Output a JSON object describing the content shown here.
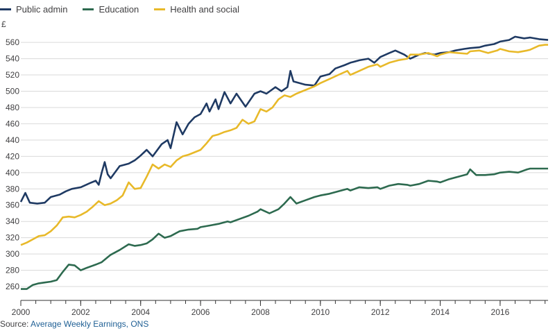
{
  "chart_data": {
    "type": "line",
    "ylabel": "£",
    "ylim": [
      243,
      578
    ],
    "xlim": [
      2000,
      2017.6
    ],
    "yticks": [
      260,
      280,
      300,
      320,
      340,
      360,
      380,
      400,
      420,
      440,
      460,
      480,
      500,
      520,
      540,
      560
    ],
    "xticks": [
      2000,
      2002,
      2004,
      2006,
      2008,
      2010,
      2012,
      2014,
      2016
    ],
    "grid": true,
    "legend_position": "top-left",
    "series": [
      {
        "name": "Public admin",
        "color": "#1f3a63",
        "points": [
          [
            2000.0,
            364
          ],
          [
            2000.15,
            375
          ],
          [
            2000.3,
            363
          ],
          [
            2000.55,
            362
          ],
          [
            2000.8,
            363
          ],
          [
            2001.0,
            370
          ],
          [
            2001.3,
            373
          ],
          [
            2001.5,
            377
          ],
          [
            2001.7,
            380
          ],
          [
            2002.0,
            382
          ],
          [
            2002.3,
            387
          ],
          [
            2002.5,
            390
          ],
          [
            2002.6,
            385
          ],
          [
            2002.7,
            400
          ],
          [
            2002.8,
            413
          ],
          [
            2002.9,
            398
          ],
          [
            2003.0,
            393
          ],
          [
            2003.3,
            408
          ],
          [
            2003.6,
            411
          ],
          [
            2003.8,
            415
          ],
          [
            2004.0,
            421
          ],
          [
            2004.2,
            428
          ],
          [
            2004.4,
            420
          ],
          [
            2004.7,
            435
          ],
          [
            2004.9,
            440
          ],
          [
            2005.0,
            430
          ],
          [
            2005.2,
            462
          ],
          [
            2005.4,
            447
          ],
          [
            2005.6,
            460
          ],
          [
            2005.8,
            468
          ],
          [
            2006.0,
            472
          ],
          [
            2006.2,
            485
          ],
          [
            2006.3,
            475
          ],
          [
            2006.5,
            490
          ],
          [
            2006.6,
            478
          ],
          [
            2006.8,
            499
          ],
          [
            2007.0,
            485
          ],
          [
            2007.2,
            497
          ],
          [
            2007.5,
            481
          ],
          [
            2007.8,
            497
          ],
          [
            2008.0,
            500
          ],
          [
            2008.2,
            497
          ],
          [
            2008.5,
            505
          ],
          [
            2008.7,
            500
          ],
          [
            2008.9,
            505
          ],
          [
            2009.0,
            525
          ],
          [
            2009.1,
            512
          ],
          [
            2009.3,
            510
          ],
          [
            2009.5,
            508
          ],
          [
            2009.8,
            507
          ],
          [
            2010.0,
            518
          ],
          [
            2010.3,
            521
          ],
          [
            2010.5,
            528
          ],
          [
            2010.8,
            532
          ],
          [
            2011.0,
            535
          ],
          [
            2011.3,
            538
          ],
          [
            2011.6,
            540
          ],
          [
            2011.8,
            535
          ],
          [
            2012.0,
            542
          ],
          [
            2012.3,
            547
          ],
          [
            2012.5,
            550
          ],
          [
            2012.8,
            545
          ],
          [
            2013.0,
            540
          ],
          [
            2013.3,
            545
          ],
          [
            2013.5,
            547
          ],
          [
            2013.8,
            545
          ],
          [
            2014.0,
            547
          ],
          [
            2014.3,
            548
          ],
          [
            2014.5,
            550
          ],
          [
            2014.8,
            552
          ],
          [
            2015.0,
            553
          ],
          [
            2015.3,
            554
          ],
          [
            2015.5,
            556
          ],
          [
            2015.8,
            558
          ],
          [
            2016.0,
            561
          ],
          [
            2016.3,
            563
          ],
          [
            2016.5,
            567
          ],
          [
            2016.8,
            565
          ],
          [
            2017.0,
            566
          ],
          [
            2017.3,
            564
          ],
          [
            2017.6,
            563
          ]
        ]
      },
      {
        "name": "Education",
        "color": "#2d6a4f",
        "points": [
          [
            2000.0,
            257
          ],
          [
            2000.2,
            257
          ],
          [
            2000.4,
            262
          ],
          [
            2000.6,
            264
          ],
          [
            2000.8,
            265
          ],
          [
            2001.0,
            266
          ],
          [
            2001.2,
            268
          ],
          [
            2001.4,
            278
          ],
          [
            2001.6,
            287
          ],
          [
            2001.8,
            286
          ],
          [
            2002.0,
            280
          ],
          [
            2002.2,
            283
          ],
          [
            2002.5,
            287
          ],
          [
            2002.7,
            290
          ],
          [
            2002.9,
            296
          ],
          [
            2003.0,
            299
          ],
          [
            2003.3,
            305
          ],
          [
            2003.6,
            312
          ],
          [
            2003.8,
            310
          ],
          [
            2004.0,
            311
          ],
          [
            2004.2,
            313
          ],
          [
            2004.4,
            318
          ],
          [
            2004.6,
            325
          ],
          [
            2004.8,
            320
          ],
          [
            2005.0,
            322
          ],
          [
            2005.3,
            328
          ],
          [
            2005.6,
            330
          ],
          [
            2005.9,
            331
          ],
          [
            2006.0,
            333
          ],
          [
            2006.3,
            335
          ],
          [
            2006.6,
            337
          ],
          [
            2006.9,
            340
          ],
          [
            2007.0,
            339
          ],
          [
            2007.3,
            343
          ],
          [
            2007.6,
            347
          ],
          [
            2007.9,
            352
          ],
          [
            2008.0,
            355
          ],
          [
            2008.3,
            350
          ],
          [
            2008.6,
            355
          ],
          [
            2008.8,
            362
          ],
          [
            2009.0,
            370
          ],
          [
            2009.2,
            362
          ],
          [
            2009.5,
            366
          ],
          [
            2009.8,
            370
          ],
          [
            2010.0,
            372
          ],
          [
            2010.3,
            374
          ],
          [
            2010.6,
            377
          ],
          [
            2010.9,
            380
          ],
          [
            2011.0,
            378
          ],
          [
            2011.3,
            382
          ],
          [
            2011.6,
            381
          ],
          [
            2011.9,
            382
          ],
          [
            2012.0,
            380
          ],
          [
            2012.3,
            384
          ],
          [
            2012.6,
            386
          ],
          [
            2012.9,
            385
          ],
          [
            2013.0,
            384
          ],
          [
            2013.3,
            386
          ],
          [
            2013.6,
            390
          ],
          [
            2013.9,
            389
          ],
          [
            2014.0,
            388
          ],
          [
            2014.3,
            392
          ],
          [
            2014.6,
            395
          ],
          [
            2014.9,
            398
          ],
          [
            2015.0,
            404
          ],
          [
            2015.2,
            397
          ],
          [
            2015.5,
            397
          ],
          [
            2015.8,
            398
          ],
          [
            2016.0,
            400
          ],
          [
            2016.3,
            401
          ],
          [
            2016.6,
            400
          ],
          [
            2016.9,
            404
          ],
          [
            2017.0,
            405
          ],
          [
            2017.3,
            405
          ],
          [
            2017.6,
            405
          ]
        ]
      },
      {
        "name": "Health and social",
        "color": "#e8b929",
        "points": [
          [
            2000.0,
            311
          ],
          [
            2000.2,
            314
          ],
          [
            2000.4,
            318
          ],
          [
            2000.6,
            322
          ],
          [
            2000.8,
            323
          ],
          [
            2001.0,
            328
          ],
          [
            2001.2,
            335
          ],
          [
            2001.4,
            345
          ],
          [
            2001.6,
            346
          ],
          [
            2001.8,
            345
          ],
          [
            2002.0,
            348
          ],
          [
            2002.2,
            352
          ],
          [
            2002.4,
            358
          ],
          [
            2002.6,
            365
          ],
          [
            2002.8,
            360
          ],
          [
            2003.0,
            362
          ],
          [
            2003.2,
            366
          ],
          [
            2003.4,
            372
          ],
          [
            2003.6,
            388
          ],
          [
            2003.8,
            380
          ],
          [
            2004.0,
            381
          ],
          [
            2004.2,
            395
          ],
          [
            2004.4,
            410
          ],
          [
            2004.6,
            405
          ],
          [
            2004.8,
            410
          ],
          [
            2005.0,
            407
          ],
          [
            2005.2,
            415
          ],
          [
            2005.4,
            420
          ],
          [
            2005.6,
            422
          ],
          [
            2005.8,
            425
          ],
          [
            2006.0,
            428
          ],
          [
            2006.2,
            436
          ],
          [
            2006.4,
            445
          ],
          [
            2006.6,
            447
          ],
          [
            2006.8,
            450
          ],
          [
            2007.0,
            452
          ],
          [
            2007.2,
            455
          ],
          [
            2007.4,
            465
          ],
          [
            2007.6,
            460
          ],
          [
            2007.8,
            463
          ],
          [
            2008.0,
            478
          ],
          [
            2008.2,
            475
          ],
          [
            2008.4,
            480
          ],
          [
            2008.6,
            490
          ],
          [
            2008.8,
            495
          ],
          [
            2009.0,
            493
          ],
          [
            2009.2,
            497
          ],
          [
            2009.4,
            500
          ],
          [
            2009.6,
            503
          ],
          [
            2009.8,
            506
          ],
          [
            2010.0,
            510
          ],
          [
            2010.3,
            515
          ],
          [
            2010.6,
            520
          ],
          [
            2010.9,
            525
          ],
          [
            2011.0,
            520
          ],
          [
            2011.3,
            525
          ],
          [
            2011.6,
            530
          ],
          [
            2011.9,
            533
          ],
          [
            2012.0,
            530
          ],
          [
            2012.3,
            535
          ],
          [
            2012.6,
            538
          ],
          [
            2012.9,
            540
          ],
          [
            2013.0,
            545
          ],
          [
            2013.3,
            545
          ],
          [
            2013.6,
            547
          ],
          [
            2013.9,
            543
          ],
          [
            2014.0,
            545
          ],
          [
            2014.3,
            548
          ],
          [
            2014.6,
            547
          ],
          [
            2014.9,
            546
          ],
          [
            2015.0,
            549
          ],
          [
            2015.3,
            550
          ],
          [
            2015.6,
            547
          ],
          [
            2015.9,
            550
          ],
          [
            2016.0,
            552
          ],
          [
            2016.3,
            549
          ],
          [
            2016.6,
            548
          ],
          [
            2016.9,
            550
          ],
          [
            2017.0,
            551
          ],
          [
            2017.3,
            556
          ],
          [
            2017.5,
            557
          ],
          [
            2017.6,
            557
          ]
        ]
      }
    ]
  },
  "source": {
    "prefix": "Source: ",
    "link_text": "Average Weekly Earnings, ONS"
  }
}
